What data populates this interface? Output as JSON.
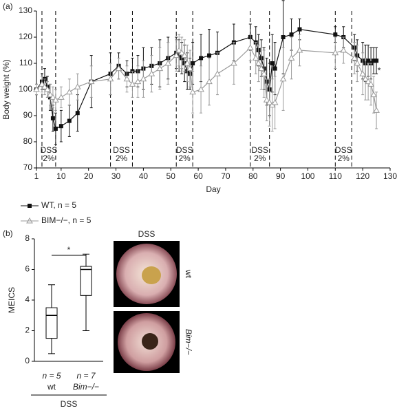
{
  "chart_data": [
    {
      "type": "line",
      "panel": "(a)",
      "x_label": "Day",
      "y_label": "Body weight (%)",
      "xlim": [
        1,
        130
      ],
      "xticks": [
        1,
        10,
        20,
        30,
        40,
        50,
        60,
        70,
        80,
        90,
        100,
        110,
        120,
        130
      ],
      "ylim": [
        70,
        130
      ],
      "yticks": [
        70,
        80,
        90,
        100,
        110,
        120,
        130
      ],
      "x": [
        1,
        3,
        4,
        5,
        6,
        7,
        8,
        10,
        13,
        16,
        21,
        28,
        31,
        34,
        36,
        38,
        40,
        43,
        46,
        49,
        52,
        53,
        54,
        55,
        56,
        57,
        58,
        61,
        64,
        67,
        73,
        79,
        81,
        82,
        83,
        84,
        85,
        86,
        87,
        88,
        91,
        94,
        97,
        110,
        113,
        117,
        118,
        120,
        121,
        122,
        123,
        124,
        125
      ],
      "series": [
        {
          "name": "WT, n = 5",
          "color": "#111111",
          "marker": "square",
          "values": [
            100,
            103,
            104,
            101,
            97,
            89,
            85,
            86,
            88,
            91,
            103,
            106,
            109,
            106,
            107,
            107,
            108,
            109,
            110,
            112,
            114,
            113,
            112,
            110,
            107,
            106,
            110,
            112,
            113,
            114,
            118,
            120,
            118,
            115,
            112,
            108,
            103,
            100,
            110,
            108,
            120,
            121,
            123,
            121,
            120,
            116,
            113,
            111,
            110,
            111,
            110,
            111,
            111
          ],
          "errors": [
            2,
            3,
            4,
            4,
            5,
            5,
            6,
            6,
            6,
            7,
            10,
            8,
            5,
            5,
            5,
            6,
            8,
            7,
            9,
            8,
            6,
            6,
            6,
            7,
            7,
            6,
            8,
            9,
            10,
            8,
            7,
            5,
            6,
            6,
            7,
            8,
            9,
            10,
            11,
            10,
            14,
            6,
            4,
            3,
            4,
            5,
            6,
            7,
            7,
            6,
            6,
            5,
            5
          ]
        },
        {
          "name": "BIM−/−, n = 5",
          "color": "#999999",
          "marker": "triangle",
          "values": [
            100,
            102,
            101,
            100,
            98,
            97,
            96,
            97,
            99,
            101,
            103,
            104,
            108,
            104,
            102,
            103,
            104,
            106,
            108,
            110,
            113,
            115,
            114,
            113,
            110,
            108,
            99,
            100,
            103,
            106,
            110,
            116,
            112,
            110,
            108,
            106,
            96,
            95,
            94,
            95,
            104,
            112,
            115,
            114,
            115,
            112,
            110,
            106,
            104,
            103,
            102,
            98,
            92
          ],
          "errors": [
            2,
            3,
            3,
            3,
            4,
            4,
            4,
            4,
            5,
            5,
            6,
            6,
            4,
            5,
            5,
            6,
            7,
            7,
            8,
            8,
            6,
            6,
            6,
            6,
            7,
            7,
            8,
            9,
            9,
            8,
            8,
            5,
            6,
            7,
            8,
            9,
            8,
            9,
            10,
            10,
            12,
            8,
            6,
            6,
            5,
            6,
            7,
            8,
            8,
            7,
            8,
            7,
            7
          ]
        }
      ],
      "dss_periods": [
        {
          "start": 3,
          "end": 8,
          "label": "DSS",
          "dose": "2%"
        },
        {
          "start": 28,
          "end": 36,
          "label": "DSS",
          "dose": "2%"
        },
        {
          "start": 52,
          "end": 58,
          "label": "DSS",
          "dose": "2%"
        },
        {
          "start": 79,
          "end": 86,
          "label": "DSS",
          "dose": "2%"
        },
        {
          "start": 110,
          "end": 116,
          "label": "DSS",
          "dose": "2%"
        }
      ],
      "significance": "*"
    },
    {
      "type": "box",
      "panel": "(b)",
      "y_label": "MEICS",
      "ylim": [
        0,
        8
      ],
      "yticks": [
        0,
        2,
        4,
        6,
        8
      ],
      "boxes": [
        {
          "n_label": "n = 5",
          "category": "wt",
          "min": 0.5,
          "q1": 1.5,
          "median": 3,
          "q3": 3.5,
          "max": 5
        },
        {
          "n_label": "n = 7",
          "category": "Bim−/−",
          "min": 2,
          "q1": 4.3,
          "median": 6,
          "q3": 6.2,
          "max": 7
        }
      ],
      "significance": "*",
      "group_label": "DSS"
    }
  ],
  "images": {
    "title": "DSS",
    "rows": [
      "wt",
      "Bim−/−"
    ]
  }
}
